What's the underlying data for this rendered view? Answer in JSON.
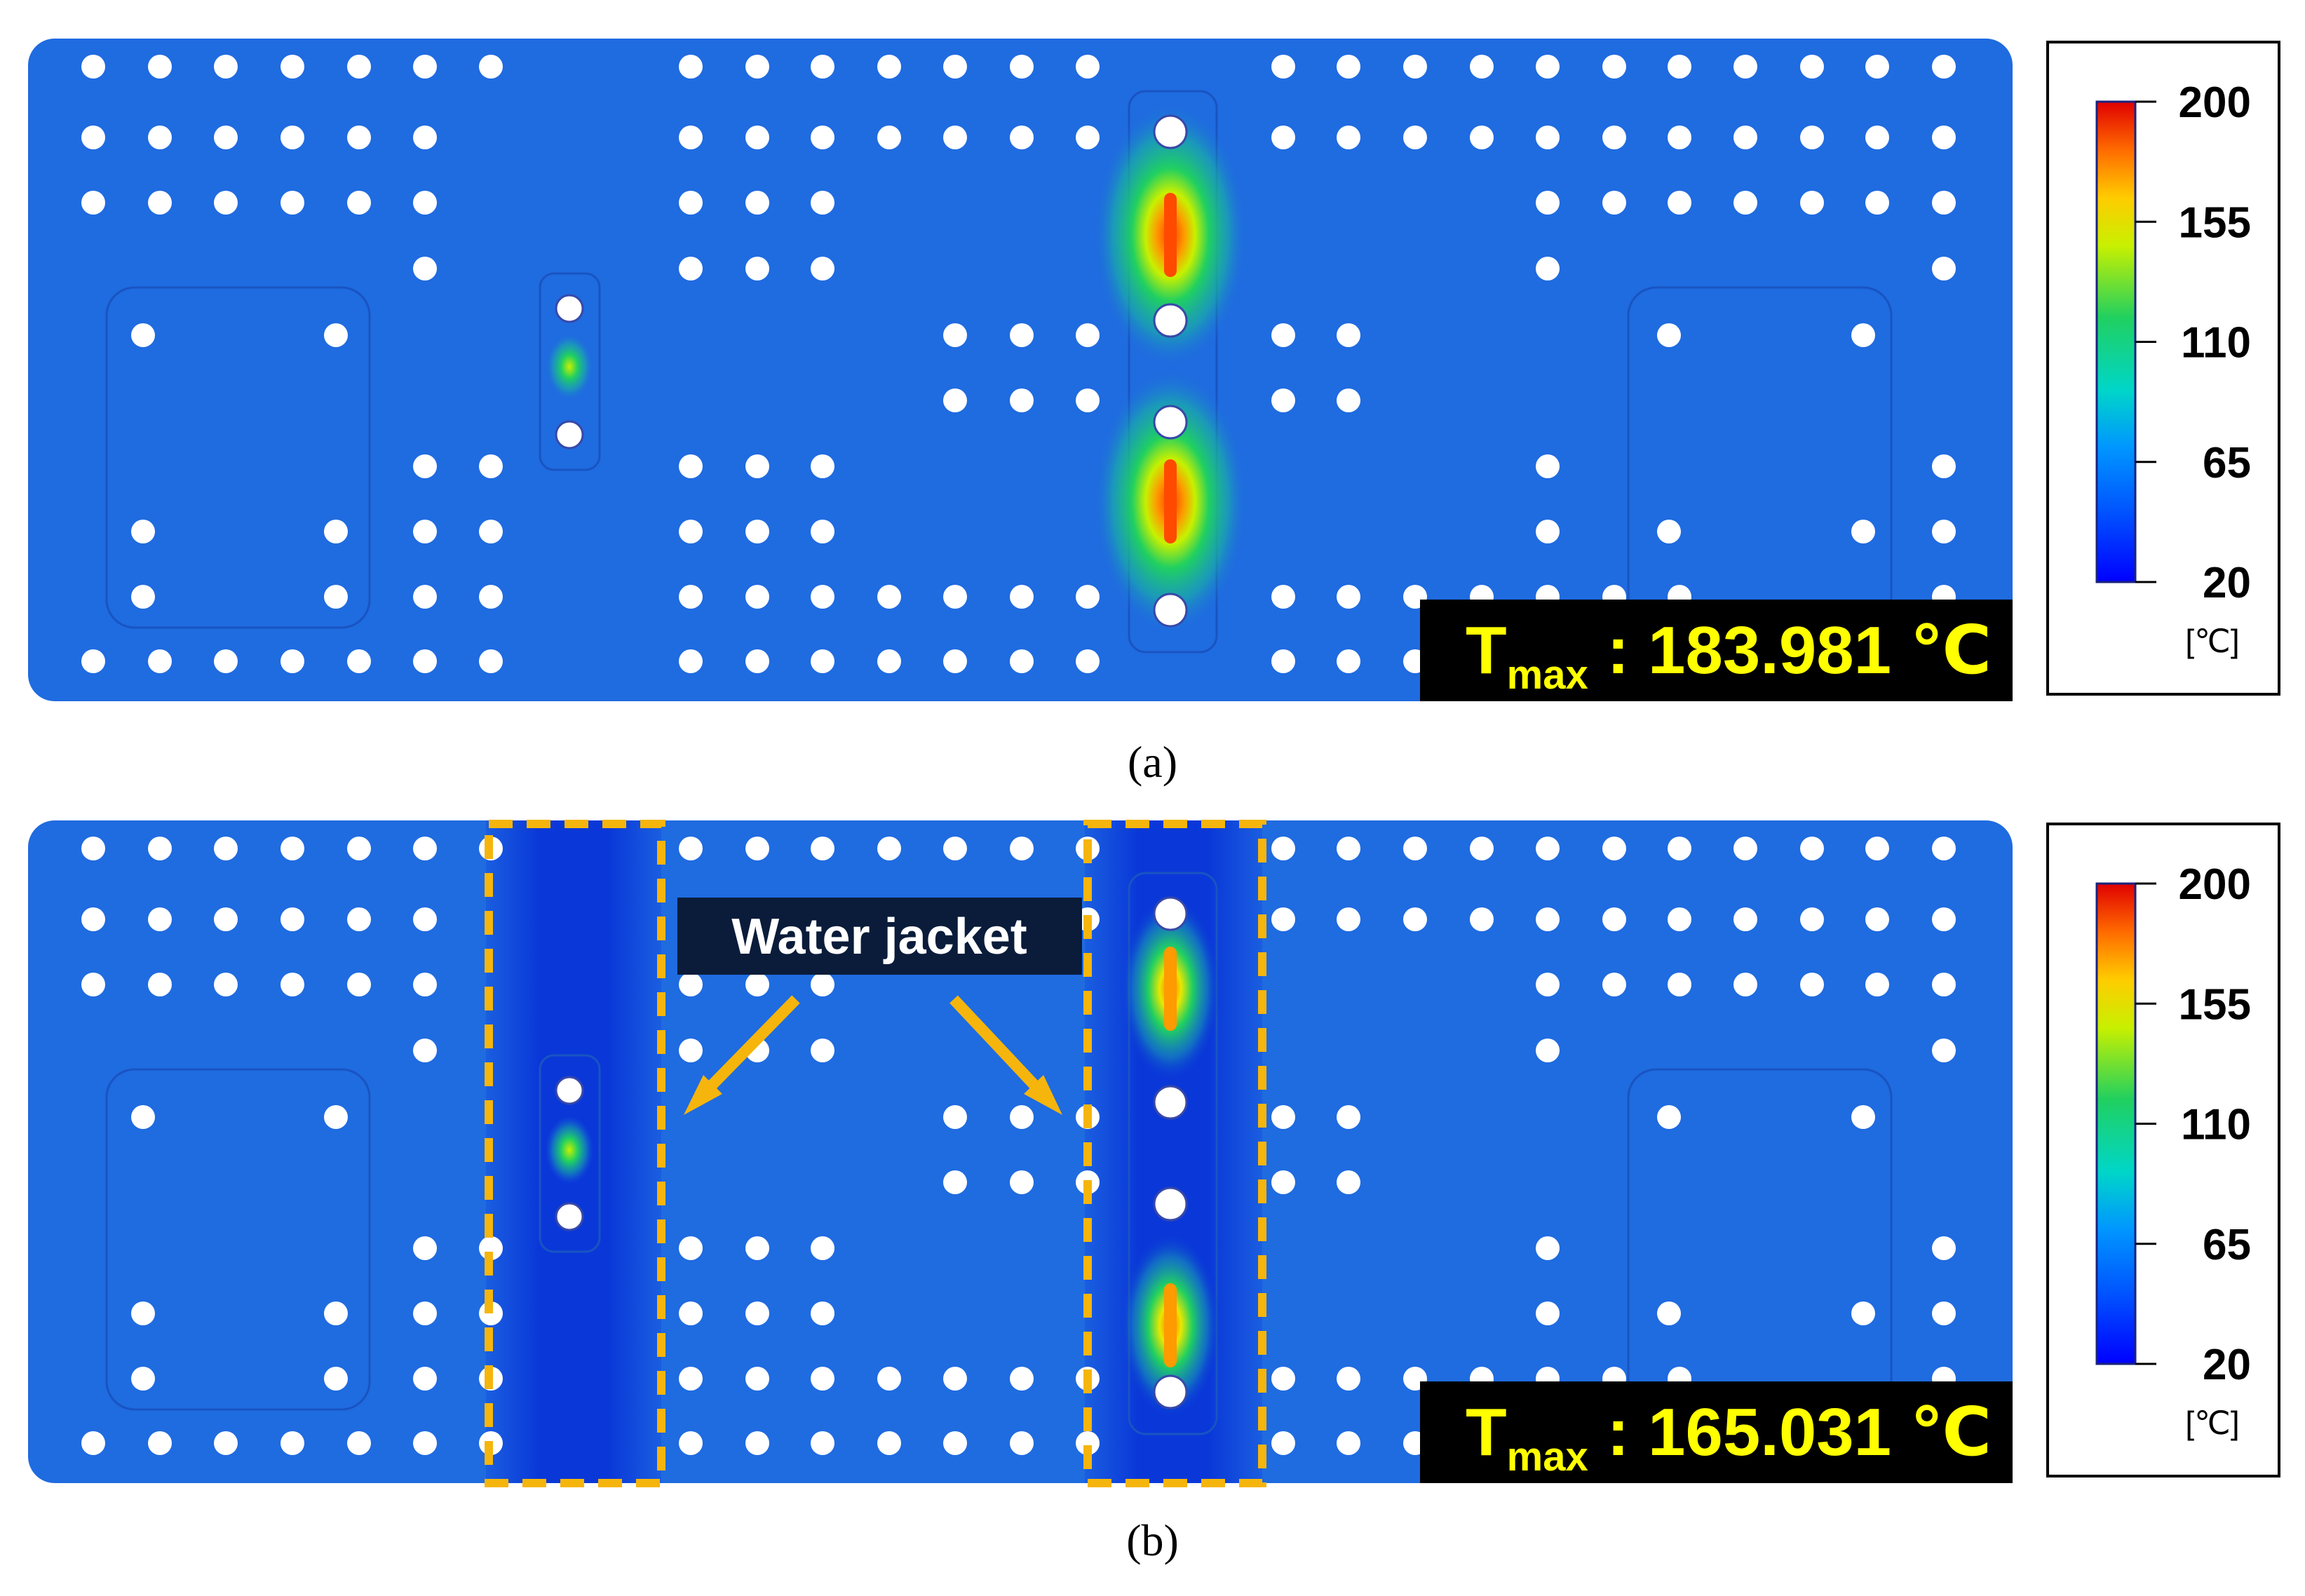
{
  "colors": {
    "plate": "#1f6be0",
    "plate_cool": "#0b3ed8",
    "hole": "#ffffff",
    "frame_line": "#1954c2",
    "dash": "#f5b50c",
    "label_bg": "#000000",
    "tmax_text": "#ffff00",
    "callout_bg": "#0a1c3a",
    "arrow": "#f5b50c"
  },
  "colorbar": {
    "colors": [
      "#0000ff",
      "#0096ff",
      "#00d6c8",
      "#20d060",
      "#c8f000",
      "#ffcc00",
      "#ff6a00",
      "#e00000"
    ],
    "ticks": [
      "200",
      "155",
      "110",
      "65",
      "20"
    ],
    "unit": "[℃]"
  },
  "panels": [
    {
      "id": "a",
      "caption": "(a)",
      "tmax_prefix": "T",
      "tmax_sub": "max",
      "tmax_value": " : 183.981 ℃",
      "has_water_jacket": false,
      "callout": ""
    },
    {
      "id": "b",
      "caption": "(b)",
      "tmax_prefix": "T",
      "tmax_sub": "max",
      "tmax_value": " : 165.031 ℃",
      "has_water_jacket": true,
      "callout": "Water jacket"
    }
  ]
}
